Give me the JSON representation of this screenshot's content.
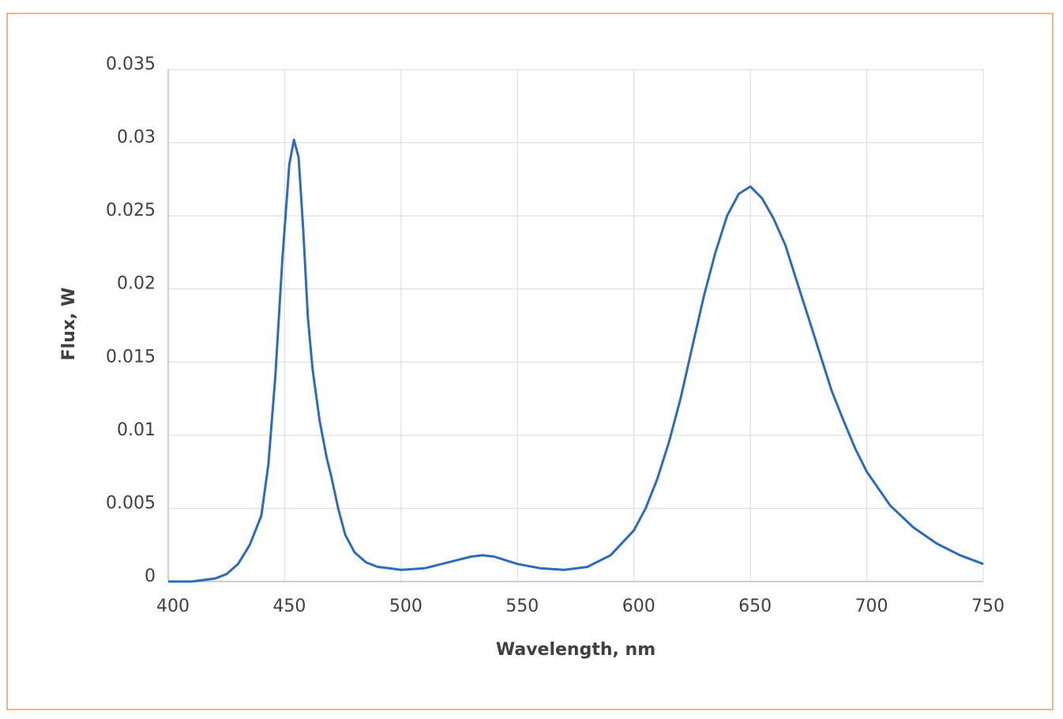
{
  "chart_data": {
    "type": "line",
    "x_label": "Wavelength, nm",
    "y_label": "Flux, W",
    "x": [
      400,
      410,
      420,
      425,
      430,
      435,
      440,
      443,
      446,
      449,
      452,
      454,
      456,
      458,
      460,
      462,
      465,
      468,
      470,
      473,
      476,
      480,
      485,
      490,
      495,
      500,
      510,
      520,
      530,
      535,
      540,
      550,
      560,
      570,
      580,
      590,
      600,
      605,
      610,
      615,
      620,
      625,
      630,
      635,
      640,
      645,
      650,
      655,
      660,
      665,
      670,
      675,
      680,
      685,
      690,
      695,
      700,
      710,
      720,
      730,
      740,
      750
    ],
    "series": [
      {
        "name": "Flux",
        "color": "#2e6bb8",
        "values": [
          0,
          0,
          0.0002,
          0.0005,
          0.0012,
          0.0025,
          0.0045,
          0.008,
          0.014,
          0.022,
          0.0285,
          0.0302,
          0.029,
          0.024,
          0.018,
          0.0145,
          0.011,
          0.0085,
          0.0072,
          0.005,
          0.0032,
          0.002,
          0.0013,
          0.001,
          0.0009,
          0.0008,
          0.0009,
          0.0013,
          0.0017,
          0.0018,
          0.0017,
          0.0012,
          0.0009,
          0.0008,
          0.001,
          0.0018,
          0.0035,
          0.005,
          0.007,
          0.0095,
          0.0125,
          0.016,
          0.0195,
          0.0225,
          0.025,
          0.0265,
          0.027,
          0.0262,
          0.0248,
          0.023,
          0.0205,
          0.018,
          0.0155,
          0.013,
          0.011,
          0.0091,
          0.0075,
          0.0052,
          0.0037,
          0.0026,
          0.0018,
          0.0012
        ]
      }
    ],
    "xlim": [
      400,
      750
    ],
    "xticks": [
      400,
      450,
      500,
      550,
      600,
      650,
      700,
      750
    ],
    "ylim": [
      0,
      0.035
    ],
    "yticks": [
      0,
      0.005,
      0.01,
      0.015,
      0.02,
      0.025,
      0.03,
      0.035
    ],
    "grid": true
  }
}
